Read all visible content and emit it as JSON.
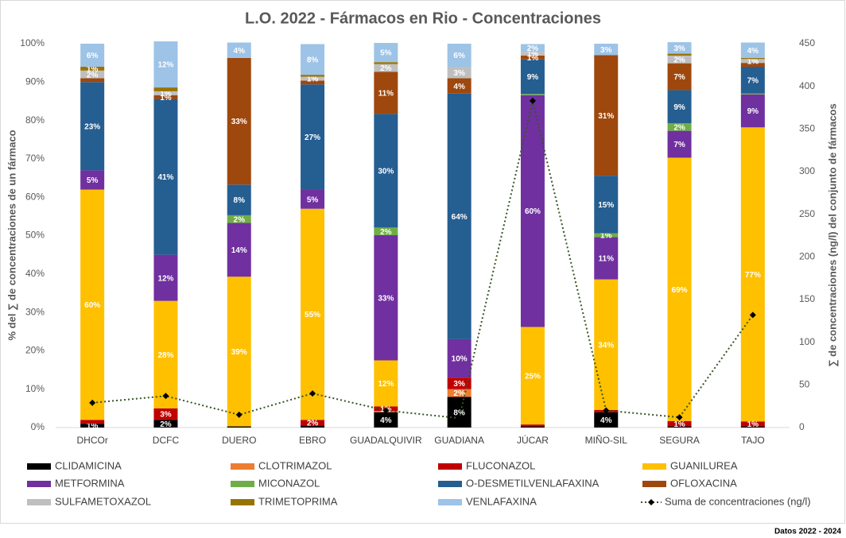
{
  "chart_data": {
    "type": "stacked_bar_line",
    "title": "L.O. 2022 - Fármacos en Rio - Concentraciones",
    "y_label": "% del ∑ de concentraciones de un fármaco",
    "y2_label": "∑ de concentraciones (ng/l) del conjunto de fármacos",
    "footer": "Datos 2022 - 2024",
    "categories": [
      "DHCOr",
      "DCFC",
      "DUERO",
      "EBRO",
      "GUADALQUIVIR",
      "GUADIANA",
      "JÚCAR",
      "MIÑO-SIL",
      "SEGURA",
      "TAJO"
    ],
    "ylim": [
      0,
      100
    ],
    "yticks": [
      {
        "value": 0,
        "label": "0%"
      },
      {
        "value": 10,
        "label": "10%"
      },
      {
        "value": 20,
        "label": "20%"
      },
      {
        "value": 30,
        "label": "30%"
      },
      {
        "value": 40,
        "label": "40%"
      },
      {
        "value": 50,
        "label": "50%"
      },
      {
        "value": 60,
        "label": "60%"
      },
      {
        "value": 70,
        "label": "70%"
      },
      {
        "value": 80,
        "label": "80%"
      },
      {
        "value": 90,
        "label": "90%"
      },
      {
        "value": 100,
        "label": "100%"
      }
    ],
    "y2lim": [
      0,
      450
    ],
    "y2ticks": [
      0,
      50,
      100,
      150,
      200,
      250,
      300,
      350,
      400,
      450
    ],
    "grid": false,
    "series": [
      {
        "name": "CLIDAMICINA",
        "color": "#000000",
        "values": [
          1,
          2,
          0.3,
          0.5,
          4,
          8,
          0.3,
          4,
          0.3,
          0.3
        ],
        "value_labels": [
          "1%",
          "2%",
          null,
          null,
          "4%",
          "8%",
          null,
          "4%",
          null,
          null
        ]
      },
      {
        "name": "CLOTRIMAZOL",
        "color": "#ed7d31",
        "values": [
          0,
          0,
          0,
          0,
          0.3,
          2,
          0,
          0,
          0,
          0
        ],
        "value_labels": [
          null,
          null,
          null,
          null,
          null,
          "2%",
          null,
          null,
          null,
          null
        ]
      },
      {
        "name": "FLUCONAZOL",
        "color": "#c00000",
        "values": [
          1,
          3,
          0,
          1.5,
          1.2,
          3,
          0.5,
          0.6,
          1.4,
          1.3
        ],
        "value_labels": [
          null,
          "3%",
          null,
          "2%",
          "1%",
          "3%",
          null,
          null,
          "1%",
          "1%"
        ]
      },
      {
        "name": "GUANILUREA",
        "color": "#ffc000",
        "values": [
          60,
          28,
          39,
          55,
          12,
          0,
          25.4,
          34,
          68.6,
          76.6
        ],
        "value_labels": [
          "60%",
          "28%",
          "39%",
          "55%",
          "12%",
          null,
          "25%",
          "34%",
          "69%",
          "77%"
        ]
      },
      {
        "name": "METFORMINA",
        "color": "#7030a0",
        "values": [
          5,
          12,
          14,
          5,
          32.6,
          10,
          60.4,
          11,
          7,
          8.6
        ],
        "value_labels": [
          "5%",
          "12%",
          "14%",
          "5%",
          "33%",
          "10%",
          "60%",
          "11%",
          "7%",
          "9%"
        ]
      },
      {
        "name": "MICONAZOL",
        "color": "#70ad47",
        "values": [
          0,
          0,
          2,
          0,
          2,
          0,
          0.3,
          1,
          2,
          0.2
        ],
        "value_labels": [
          null,
          null,
          "2%",
          null,
          "2%",
          null,
          null,
          "1%",
          "2%",
          null
        ]
      },
      {
        "name": "O-DESMETILVENLAFAXINA",
        "color": "#255e91",
        "values": [
          23,
          40.6,
          8,
          27.4,
          29.6,
          64,
          9,
          15,
          8.6,
          7
        ],
        "value_labels": [
          "23%",
          "41%",
          "8%",
          "27%",
          "30%",
          "64%",
          "9%",
          "15%",
          "9%",
          "7%"
        ]
      },
      {
        "name": "OFLOXACINA",
        "color": "#9e480e",
        "values": [
          1,
          1,
          33,
          1,
          11,
          4,
          1,
          31.4,
          7,
          1
        ],
        "value_labels": [
          null,
          "1%",
          "33%",
          null,
          "11%",
          "4%",
          "1%",
          "31%",
          "7%",
          null
        ]
      },
      {
        "name": "SULFAMETOXAZOL",
        "color": "#bfbfbf",
        "values": [
          2,
          1,
          0,
          1,
          2,
          3,
          1,
          0,
          2,
          1
        ],
        "value_labels": [
          "2%",
          "1%",
          null,
          "1%",
          "2%",
          "3%",
          "1%",
          null,
          "2%",
          "1%"
        ]
      },
      {
        "name": "TRIMETOPRIMA",
        "color": "#997300",
        "values": [
          1,
          1,
          0,
          0.5,
          0.5,
          0,
          0,
          0,
          0.5,
          0.3
        ],
        "value_labels": [
          "1%",
          null,
          null,
          null,
          null,
          null,
          null,
          null,
          null,
          null
        ]
      },
      {
        "name": "VENLAFAXINA",
        "color": "#9dc3e6",
        "values": [
          6,
          12,
          4,
          8,
          5,
          6,
          2,
          3,
          3,
          4
        ],
        "value_labels": [
          "6%",
          "12%",
          "4%",
          "8%",
          "5%",
          "6%",
          "2%",
          "3%",
          "3%",
          "4%"
        ]
      },
      {
        "name": "Suma de concentraciones (ng/l)",
        "type": "line",
        "axis": "y2",
        "color": "#375623",
        "marker_color": "#000000",
        "values": [
          29,
          37,
          15,
          40,
          20,
          11,
          383,
          20,
          12,
          132
        ]
      }
    ]
  }
}
